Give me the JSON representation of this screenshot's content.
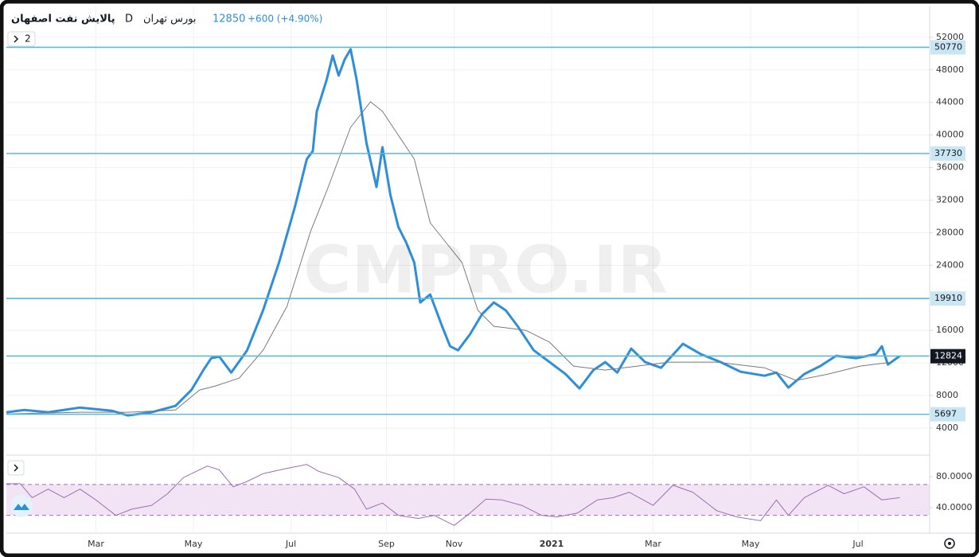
{
  "header": {
    "symbol": "پالایش نفت اصفهان",
    "interval": "D",
    "exchange": "بورس تهران",
    "last": 12850,
    "change": "+600 (+4.90%)",
    "indicators": "2"
  },
  "watermark": "CMPRO.IR",
  "chart_data": [
    {
      "type": "line",
      "xlim": [
        0,
        464
      ],
      "xticks": [
        {
          "value": 45,
          "label": "Mar"
        },
        {
          "value": 94,
          "label": "May"
        },
        {
          "value": 143,
          "label": "Jul"
        },
        {
          "value": 191,
          "label": "Sep"
        },
        {
          "value": 225,
          "label": "Nov"
        },
        {
          "value": 274,
          "label": "2021"
        },
        {
          "value": 325,
          "label": "Mar"
        },
        {
          "value": 374,
          "label": "May"
        },
        {
          "value": 428,
          "label": "Jul"
        }
      ],
      "ylim": [
        870,
        55800
      ],
      "yticks": [
        4000,
        8000,
        12000,
        16000,
        20000,
        24000,
        28000,
        32000,
        36000,
        40000,
        44000,
        48000,
        52000
      ],
      "grid": true,
      "series": [
        {
          "color": "#2e8fd8",
          "x": [
            0,
            9,
            21,
            37,
            53,
            61,
            73,
            85,
            93,
            99,
            103,
            107,
            113,
            121,
            129,
            137,
            145,
            151,
            154,
            156,
            161,
            164,
            167,
            170,
            173,
            176,
            181,
            186,
            189,
            193,
            197,
            201,
            205,
            208,
            213,
            219,
            223,
            227,
            233,
            239,
            245,
            251,
            257,
            265,
            273,
            281,
            288,
            295,
            301,
            307,
            314,
            321,
            329,
            340,
            349,
            359,
            369,
            381,
            387,
            393,
            401,
            409,
            417,
            427,
            437,
            440,
            443,
            449
          ],
          "values": [
            5940,
            6230,
            5940,
            6520,
            6130,
            5550,
            5940,
            6720,
            8680,
            11120,
            12590,
            12780,
            10820,
            13560,
            18450,
            24320,
            31170,
            37040,
            38020,
            42910,
            46820,
            49760,
            47310,
            49270,
            50530,
            46820,
            38990,
            33610,
            38500,
            32630,
            28710,
            26750,
            24320,
            19430,
            20410,
            16500,
            14050,
            13560,
            15520,
            17970,
            19430,
            18450,
            16500,
            13560,
            12100,
            10630,
            8870,
            11120,
            12100,
            10820,
            13760,
            12100,
            11410,
            14350,
            13080,
            12100,
            10920,
            10430,
            10820,
            8970,
            10630,
            11610,
            12880,
            12590,
            13080,
            14050,
            11800,
            12850
          ]
        },
        {
          "color": "#7a7a7a",
          "x": [
            0,
            37,
            61,
            85,
            97,
            105,
            117,
            129,
            141,
            153,
            161,
            173,
            183,
            189,
            197,
            205,
            213,
            221,
            229,
            237,
            245,
            261,
            273,
            285,
            301,
            317,
            333,
            357,
            381,
            397,
            413,
            429,
            445
          ],
          "values": [
            5740,
            5940,
            5940,
            6230,
            8670,
            9170,
            10140,
            13560,
            18940,
            28230,
            33120,
            40940,
            44080,
            42910,
            39970,
            37040,
            29210,
            26770,
            24320,
            18450,
            16500,
            16010,
            14540,
            11610,
            11120,
            11610,
            12100,
            12100,
            11410,
            9850,
            10630,
            11610,
            12100
          ]
        }
      ],
      "levels": {
        "color": "#5fb8d8",
        "values": [
          50770,
          37730,
          19910,
          12850,
          5697
        ]
      },
      "price_labels": [
        {
          "value": 12824,
          "color": "#131722"
        }
      ]
    },
    {
      "type": "line",
      "xlim": [
        0,
        464
      ],
      "ylim": [
        9,
        105
      ],
      "yticks": [
        {
          "value": 40,
          "label": "40.0000"
        },
        {
          "value": 80,
          "label": "80.0000"
        }
      ],
      "band": [
        30,
        70
      ],
      "series": [
        {
          "color": "#9c6fb0",
          "x": [
            0,
            7,
            13,
            21,
            29,
            37,
            45,
            55,
            63,
            73,
            81,
            89,
            101,
            107,
            114,
            121,
            129,
            141,
            151,
            157,
            167,
            175,
            181,
            189,
            197,
            207,
            215,
            225,
            233,
            241,
            249,
            259,
            269,
            277,
            287,
            297,
            305,
            313,
            325,
            335,
            345,
            357,
            367,
            379,
            387,
            393,
            401,
            413,
            421,
            431,
            440,
            449
          ],
          "values": [
            71,
            71,
            53,
            64,
            53,
            64,
            50,
            30,
            38,
            43,
            58,
            79,
            94,
            89,
            67,
            74,
            84,
            91,
            96,
            87,
            79,
            64,
            38,
            46,
            30,
            26,
            30,
            17,
            33,
            51,
            50,
            43,
            30,
            28,
            33,
            50,
            53,
            60,
            43,
            69,
            60,
            36,
            28,
            23,
            50,
            30,
            53,
            69,
            58,
            67,
            50,
            53
          ]
        }
      ]
    }
  ]
}
